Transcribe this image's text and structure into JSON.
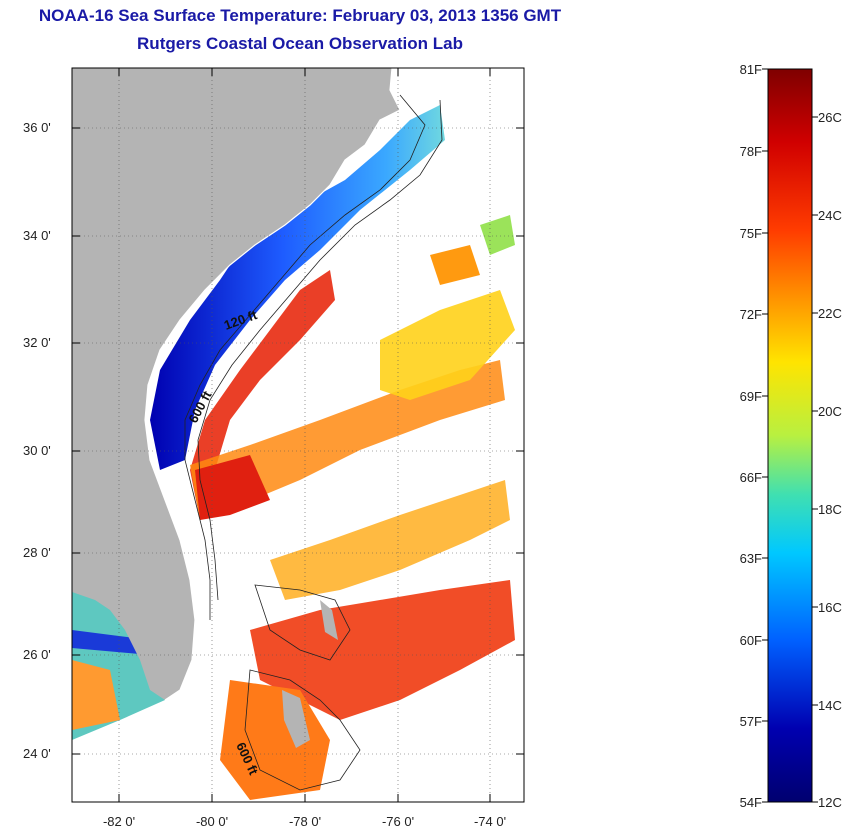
{
  "title": "NOAA-16 Sea Surface Temperature:  February 03, 2013 1356 GMT",
  "subtitle": "Rutgers Coastal Ocean Observation Lab",
  "map": {
    "lat_labels": [
      "36 0'",
      "34 0'",
      "32 0'",
      "30 0'",
      "28 0'",
      "26 0'",
      "24 0'"
    ],
    "lon_labels": [
      "-82 0'",
      "-80 0'",
      "-78 0'",
      "-76 0'",
      "-74 0'"
    ],
    "isobath_labels": [
      "120 ft",
      "600 ft",
      "600 ft"
    ],
    "land_color": "#b4b4b4",
    "cloud_color": "#ffffff"
  },
  "colorbar": {
    "fahrenheit_labels": [
      "81F",
      "78F",
      "75F",
      "72F",
      "69F",
      "66F",
      "63F",
      "60F",
      "57F",
      "54F"
    ],
    "celsius_labels": [
      "26C",
      "24C",
      "22C",
      "20C",
      "18C",
      "16C",
      "14C",
      "12C"
    ],
    "colors": [
      "#7f0000",
      "#d00000",
      "#ff3c00",
      "#ff9a00",
      "#ffe400",
      "#b8f040",
      "#40e0b0",
      "#00c8ff",
      "#0060ff",
      "#0000b0",
      "#00006f"
    ]
  }
}
